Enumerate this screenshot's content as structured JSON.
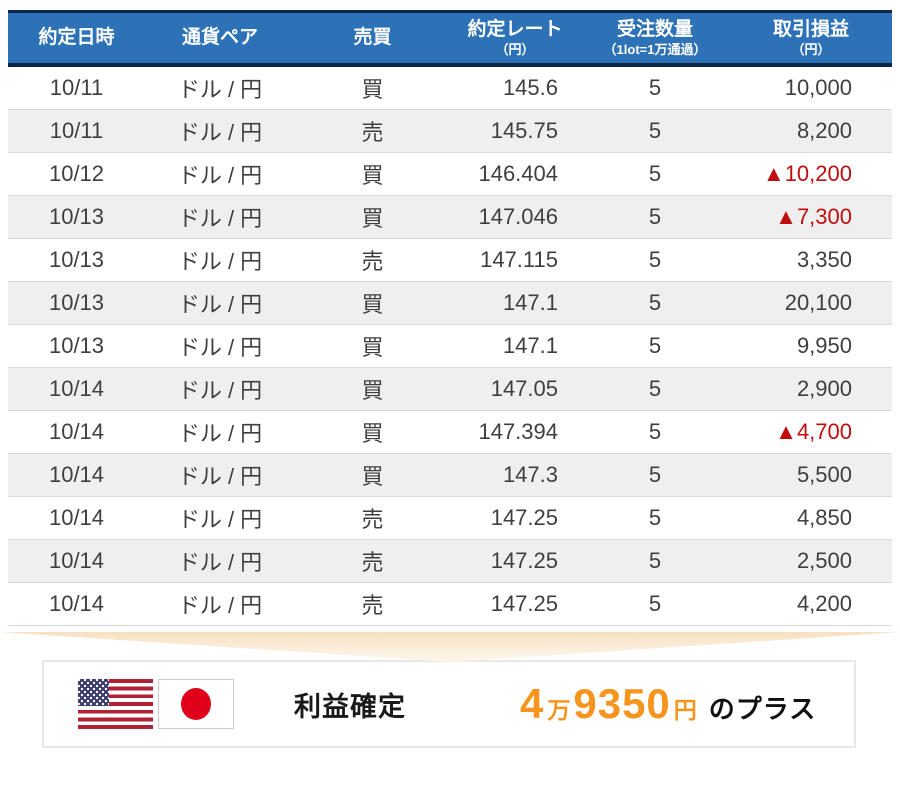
{
  "table": {
    "columns": [
      {
        "label": "約定日時",
        "sub": ""
      },
      {
        "label": "通貨ペア",
        "sub": ""
      },
      {
        "label": "売買",
        "sub": ""
      },
      {
        "label": "約定レート",
        "sub": "（円）"
      },
      {
        "label": "受注数量",
        "sub": "（1lot=1万通過）"
      },
      {
        "label": "取引損益",
        "sub": "（円）"
      }
    ],
    "rows": [
      {
        "date": "10/11",
        "pair": "ドル / 円",
        "side": "買",
        "rate": "145.6",
        "qty": "5",
        "pnl": "10,000",
        "loss": false
      },
      {
        "date": "10/11",
        "pair": "ドル / 円",
        "side": "売",
        "rate": "145.75",
        "qty": "5",
        "pnl": "8,200",
        "loss": false
      },
      {
        "date": "10/12",
        "pair": "ドル / 円",
        "side": "買",
        "rate": "146.404",
        "qty": "5",
        "pnl": "▲10,200",
        "loss": true
      },
      {
        "date": "10/13",
        "pair": "ドル / 円",
        "side": "買",
        "rate": "147.046",
        "qty": "5",
        "pnl": "▲7,300",
        "loss": true
      },
      {
        "date": "10/13",
        "pair": "ドル / 円",
        "side": "売",
        "rate": "147.115",
        "qty": "5",
        "pnl": "3,350",
        "loss": false
      },
      {
        "date": "10/13",
        "pair": "ドル / 円",
        "side": "買",
        "rate": "147.1",
        "qty": "5",
        "pnl": "20,100",
        "loss": false
      },
      {
        "date": "10/13",
        "pair": "ドル / 円",
        "side": "買",
        "rate": "147.1",
        "qty": "5",
        "pnl": "9,950",
        "loss": false
      },
      {
        "date": "10/14",
        "pair": "ドル / 円",
        "side": "買",
        "rate": "147.05",
        "qty": "5",
        "pnl": "2,900",
        "loss": false
      },
      {
        "date": "10/14",
        "pair": "ドル / 円",
        "side": "買",
        "rate": "147.394",
        "qty": "5",
        "pnl": "▲4,700",
        "loss": true
      },
      {
        "date": "10/14",
        "pair": "ドル / 円",
        "side": "買",
        "rate": "147.3",
        "qty": "5",
        "pnl": "5,500",
        "loss": false
      },
      {
        "date": "10/14",
        "pair": "ドル / 円",
        "side": "売",
        "rate": "147.25",
        "qty": "5",
        "pnl": "4,850",
        "loss": false
      },
      {
        "date": "10/14",
        "pair": "ドル / 円",
        "side": "売",
        "rate": "147.25",
        "qty": "5",
        "pnl": "2,500",
        "loss": false
      },
      {
        "date": "10/14",
        "pair": "ドル / 円",
        "side": "売",
        "rate": "147.25",
        "qty": "5",
        "pnl": "4,200",
        "loss": false
      }
    ]
  },
  "footer": {
    "profit_label": "利益確定",
    "amount_man": "4",
    "unit_man": "万",
    "amount_yen": "9350",
    "unit_yen": "円",
    "suffix": "のプラス"
  },
  "colors": {
    "header_blue": "#2d72b7",
    "header_border_navy": "#0d2449",
    "row_alt_gray": "#efefef",
    "loss_red": "#c00d0d",
    "accent_orange": "#f7941e",
    "chevron_peach": "#f8e0c1"
  }
}
